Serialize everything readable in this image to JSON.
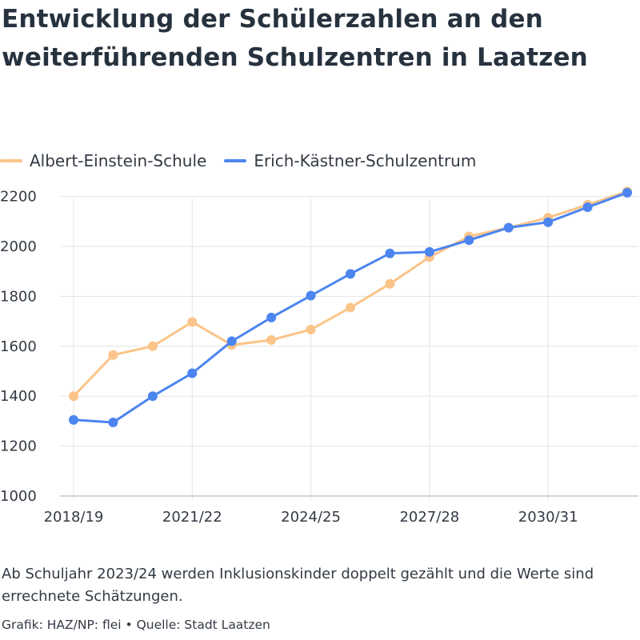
{
  "header": {
    "title": "Entwicklung der Schülerzahlen an den weiterführenden Schulzentren in Laatzen"
  },
  "footer": {
    "note": "Ab Schuljahr 2023/24 werden Inklusionskinder doppelt gezählt und die Werte sind errechnete Schätzungen.",
    "source": "Grafik: HAZ/NP: flei • Quelle: Stadt Laatzen"
  },
  "chart_data": {
    "type": "line",
    "x": [
      "2018/19",
      "2019/20",
      "2020/21",
      "2021/22",
      "2022/23",
      "2023/24",
      "2024/25",
      "2025/26",
      "2026/27",
      "2027/28",
      "2028/29",
      "2029/30",
      "2030/31",
      "2031/32",
      "2032/33"
    ],
    "x_tick_labels": [
      "2018/19",
      "2021/22",
      "2024/25",
      "2027/28",
      "2030/31"
    ],
    "series": [
      {
        "name": "Albert-Einstein-Schule",
        "color": "#fbc488",
        "values": [
          1400,
          1565,
          1600,
          1697,
          1605,
          1625,
          1667,
          1755,
          1850,
          1957,
          2040,
          2075,
          2115,
          2167,
          2220
        ]
      },
      {
        "name": "Erich-Kästner-Schulzentrum",
        "color": "#4c85f0",
        "values": [
          1305,
          1295,
          1400,
          1492,
          1620,
          1715,
          1803,
          1890,
          1972,
          1978,
          2025,
          2075,
          2097,
          2157,
          2215
        ]
      }
    ],
    "y_ticks": [
      1000,
      1200,
      1400,
      1600,
      1800,
      2000,
      2200
    ],
    "ylim": [
      1000,
      2250
    ],
    "grid": true,
    "legend_position": "top-left"
  }
}
